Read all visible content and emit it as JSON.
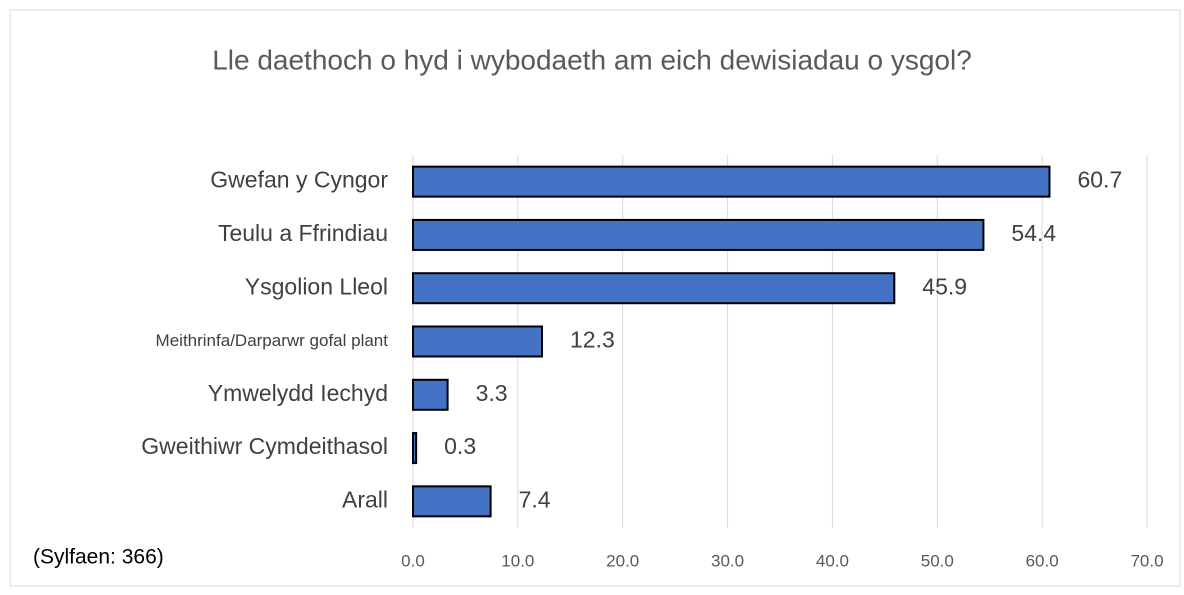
{
  "chart_data": {
    "type": "bar",
    "orientation": "horizontal",
    "title": "Lle daethoch o hyd i wybodaeth am eich dewisiadau o ysgol?",
    "annotation": "(Sylfaen: 366)",
    "categories": [
      "Gwefan y Cyngor",
      "Teulu a Ffrindiau",
      "Ysgolion Lleol",
      "Meithrinfa/Darparwr gofal plant",
      "Ymwelydd Iechyd",
      "Gweithiwr Cymdeithasol",
      "Arall"
    ],
    "values": [
      60.7,
      54.4,
      45.9,
      12.3,
      3.3,
      0.3,
      7.4
    ],
    "color": "#4472c4",
    "xlim": [
      0,
      70
    ],
    "xticks": [
      {
        "value": 0,
        "label": "0.0"
      },
      {
        "value": 10,
        "label": "10.0"
      },
      {
        "value": 20,
        "label": "20.0"
      },
      {
        "value": 30,
        "label": "30.0"
      },
      {
        "value": 40,
        "label": "40.0"
      },
      {
        "value": 50,
        "label": "50.0"
      },
      {
        "value": 60,
        "label": "60.0"
      },
      {
        "value": 70,
        "label": "70.0"
      }
    ],
    "grid": true
  }
}
